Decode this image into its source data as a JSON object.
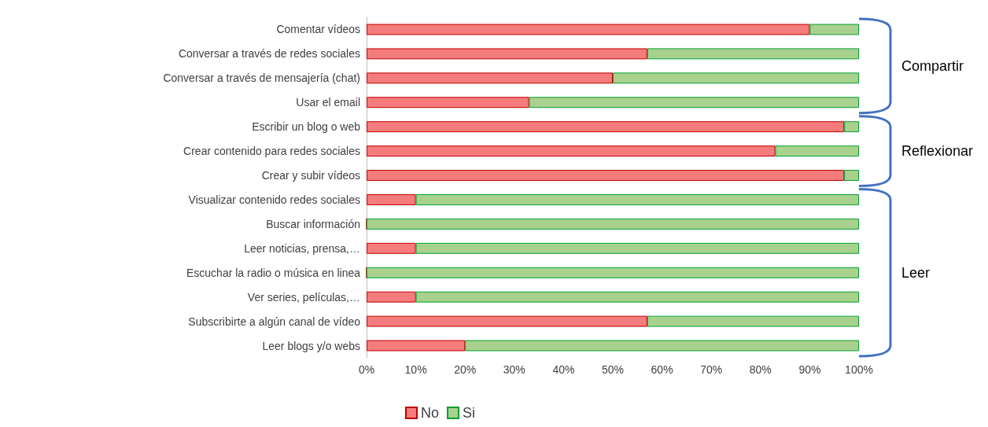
{
  "chart_data": {
    "type": "bar",
    "orientation": "horizontal",
    "stacked": true,
    "categories": [
      "Comentar vídeos",
      "Conversar a través de redes sociales",
      "Conversar a través de mensajería (chat)",
      "Usar el email",
      "Escribir un blog o web",
      "Crear contenido para redes sociales",
      "Crear y subir vídeos",
      "Visualizar contenido redes sociales",
      "Buscar información",
      "Leer noticias, prensa,…",
      "Escuchar la radio o música en linea",
      "Ver series, películas,…",
      "Subscribirte a algún canal de vídeo",
      "Leer blogs y/o webs"
    ],
    "series": [
      {
        "name": "No",
        "color": "#f47c7c",
        "values": [
          90,
          57,
          50,
          33,
          97,
          83,
          97,
          10,
          0,
          10,
          0,
          10,
          57,
          20
        ]
      },
      {
        "name": "Si",
        "color": "#a9d18e",
        "values": [
          10,
          43,
          50,
          67,
          3,
          17,
          3,
          90,
          100,
          90,
          100,
          90,
          43,
          80
        ]
      }
    ],
    "xlim": [
      0,
      100
    ],
    "xticks": [
      {
        "value": 0,
        "label": "0%"
      },
      {
        "value": 10,
        "label": "10%"
      },
      {
        "value": 20,
        "label": "20%"
      },
      {
        "value": 30,
        "label": "30%"
      },
      {
        "value": 40,
        "label": "40%"
      },
      {
        "value": 50,
        "label": "50%"
      },
      {
        "value": 60,
        "label": "60%"
      },
      {
        "value": 70,
        "label": "70%"
      },
      {
        "value": 80,
        "label": "80%"
      },
      {
        "value": 90,
        "label": "90%"
      },
      {
        "value": 100,
        "label": "100%"
      }
    ],
    "legend": "bottom",
    "grid": false,
    "annotations": [
      "Compartir",
      "Reflexionar",
      "Leer"
    ]
  }
}
